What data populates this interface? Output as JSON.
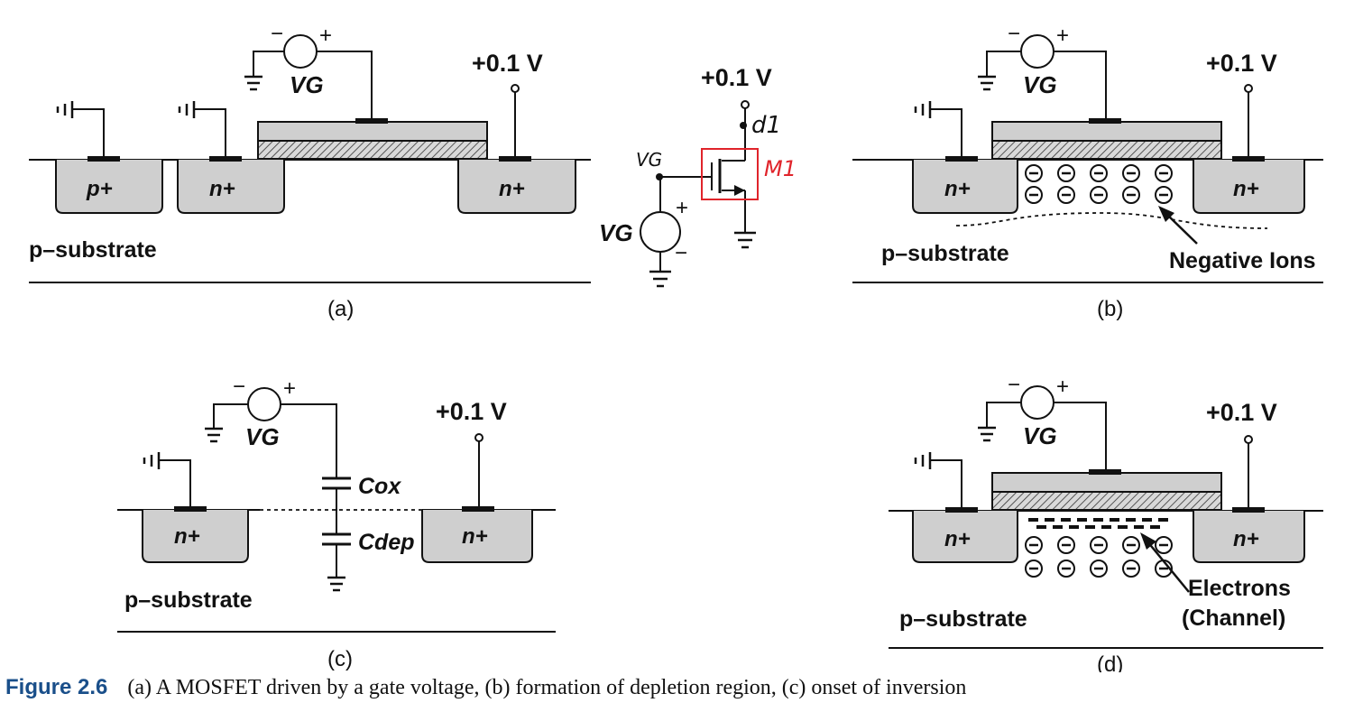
{
  "panels": {
    "a": {
      "label": "(a)",
      "substrate": "p–substrate",
      "left_diff": "p+",
      "mid_diff": "n+",
      "right_diff": "n+",
      "vg": "VG",
      "voltage": "+0.1 V"
    },
    "b": {
      "label": "(b)",
      "substrate": "p–substrate",
      "left_diff": "n+",
      "right_diff": "n+",
      "vg": "VG",
      "voltage": "+0.1 V",
      "annotation": "Negative Ions"
    },
    "c": {
      "label": "(c)",
      "substrate": "p–substrate",
      "left_diff": "n+",
      "right_diff": "n+",
      "vg": "VG",
      "voltage": "+0.1 V",
      "cox": "Cox",
      "cdep": "Cdep"
    },
    "d": {
      "label": "(d)",
      "substrate": "p–substrate",
      "left_diff": "n+",
      "right_diff": "n+",
      "vg": "VG",
      "voltage": "+0.1 V",
      "annotation_line1": "Electrons",
      "annotation_line2": "(Channel)"
    }
  },
  "schematic": {
    "voltage": "+0.1 V",
    "vg_source": "VG",
    "gate_node": "VG",
    "drain_note": "d1",
    "transistor": "M1",
    "annotation_color": "#e0242b"
  },
  "caption": {
    "figure_number": "Figure 2.6",
    "text": "(a) A MOSFET driven by a gate voltage, (b) formation of depletion region, (c) onset of inversion"
  }
}
